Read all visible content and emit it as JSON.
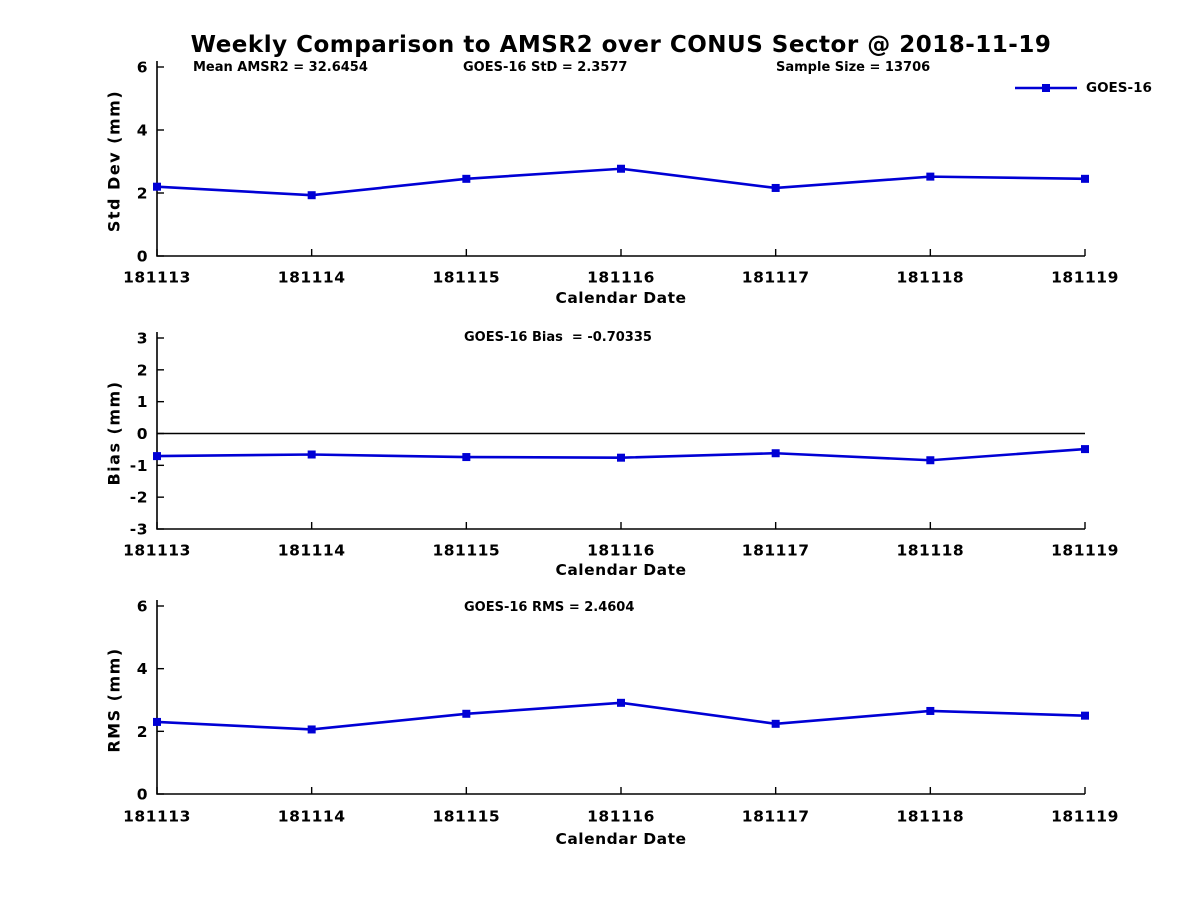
{
  "title": "Weekly Comparison to AMSR2 over CONUS Sector @ 2018-11-19",
  "colors": {
    "series_blue": "#0000d5",
    "axis_black": "#000000"
  },
  "chart_data": [
    {
      "type": "line",
      "name": "std_dev",
      "ylabel": "Std Dev (mm)",
      "xlabel": "Calendar Date",
      "ylim": [
        0,
        6
      ],
      "yticks": [
        0,
        2,
        4,
        6
      ],
      "categories": [
        "181113",
        "181114",
        "181115",
        "181116",
        "181117",
        "181118",
        "181119"
      ],
      "series": [
        {
          "name": "GOES-16",
          "values": [
            2.2,
            1.93,
            2.45,
            2.77,
            2.16,
            2.52,
            2.45
          ]
        }
      ],
      "annotations": [
        "Mean AMSR2 = 32.6454",
        "GOES-16 StD = 2.3577",
        "Sample Size = 13706"
      ],
      "legend": {
        "label": "GOES-16",
        "position": "top-right"
      },
      "zero_line": false,
      "grid": false
    },
    {
      "type": "line",
      "name": "bias",
      "ylabel": "Bias (mm)",
      "xlabel": "Calendar Date",
      "ylim": [
        -3,
        3
      ],
      "yticks": [
        -3,
        -2,
        -1,
        0,
        1,
        2,
        3
      ],
      "categories": [
        "181113",
        "181114",
        "181115",
        "181116",
        "181117",
        "181118",
        "181119"
      ],
      "series": [
        {
          "name": "GOES-16",
          "values": [
            -0.71,
            -0.66,
            -0.74,
            -0.76,
            -0.62,
            -0.84,
            -0.49
          ]
        }
      ],
      "annotations": [
        "GOES-16 Bias  = -0.70335"
      ],
      "zero_line": true,
      "grid": false
    },
    {
      "type": "line",
      "name": "rms",
      "ylabel": "RMS (mm)",
      "xlabel": "Calendar Date",
      "ylim": [
        0,
        6
      ],
      "yticks": [
        0,
        2,
        4,
        6
      ],
      "categories": [
        "181113",
        "181114",
        "181115",
        "181116",
        "181117",
        "181118",
        "181119"
      ],
      "series": [
        {
          "name": "GOES-16",
          "values": [
            2.3,
            2.06,
            2.56,
            2.91,
            2.24,
            2.65,
            2.5
          ]
        }
      ],
      "annotations": [
        "GOES-16 RMS = 2.4604"
      ],
      "zero_line": false,
      "grid": false
    }
  ]
}
